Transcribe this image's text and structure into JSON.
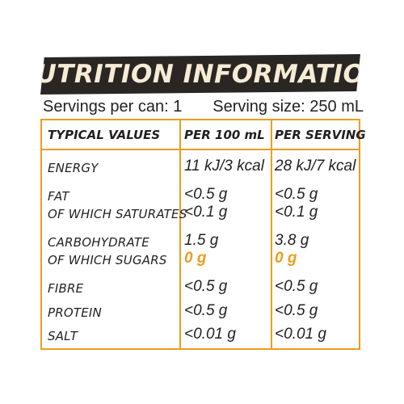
{
  "title": "NUTRITION INFORMATION",
  "servings_per_can": "Servings per can: 1",
  "serving_size": "Serving size: 250 mL",
  "colors": {
    "banner_bg": "#2a2623",
    "banner_text": "#f6ecd6",
    "accent": "#ed9c1f"
  },
  "table": {
    "headers": [
      "TYPICAL VALUES",
      "PER 100 mL",
      "PER SERVING"
    ],
    "rows": [
      {
        "label": "ENERGY",
        "per100": "11 kJ/3 kcal",
        "perServing": "28 kJ/7 kcal"
      },
      {
        "label": "FAT",
        "per100": "<0.5 g",
        "perServing": "<0.5 g"
      },
      {
        "label": "OF WHICH SATURATES",
        "per100": "<0.1 g",
        "perServing": "<0.1 g"
      },
      {
        "label": "CARBOHYDRATE",
        "per100": "1.5 g",
        "perServing": "3.8 g"
      },
      {
        "label": "OF WHICH SUGARS",
        "per100": "0 g",
        "perServing": "0 g"
      },
      {
        "label": "FIBRE",
        "per100": "<0.5 g",
        "perServing": "<0.5 g"
      },
      {
        "label": "PROTEIN",
        "per100": "<0.5 g",
        "perServing": "<0.5 g"
      },
      {
        "label": "SALT",
        "per100": "<0.01 g",
        "perServing": "<0.01 g"
      }
    ]
  }
}
